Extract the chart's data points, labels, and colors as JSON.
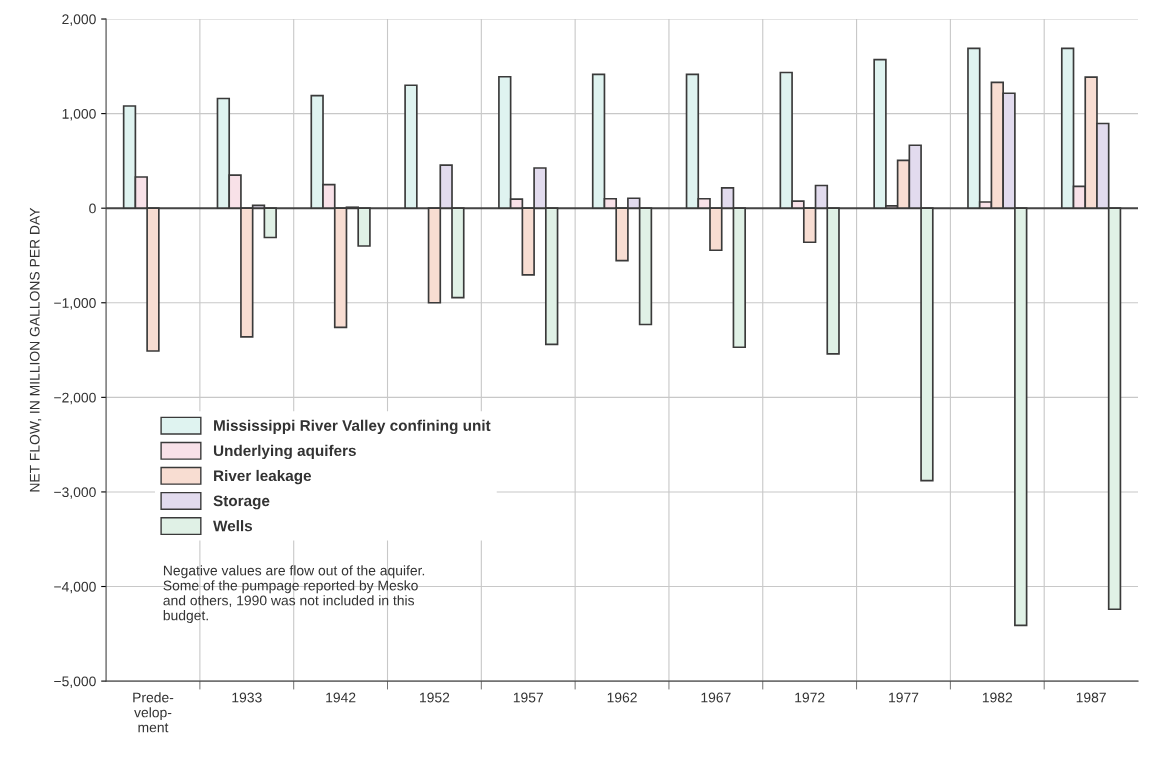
{
  "chart_data": {
    "type": "bar",
    "ylabel": "NET FLOW, IN MILLION GALLONS PER DAY",
    "categories": [
      "Prede-\nvelop-\nment",
      "1933",
      "1942",
      "1952",
      "1957",
      "1962",
      "1967",
      "1972",
      "1977",
      "1982",
      "1987"
    ],
    "series": [
      {
        "name": "Mississippi River Valley confining unit",
        "color": "#dff3f0",
        "values": [
          1080,
          1160,
          1190,
          1300,
          1390,
          1415,
          1415,
          1435,
          1570,
          1690,
          1690
        ]
      },
      {
        "name": "Underlying aquifers",
        "color": "#f8e1e8",
        "values": [
          330,
          350,
          250,
          null,
          95,
          100,
          100,
          75,
          25,
          65,
          230
        ]
      },
      {
        "name": "River leakage",
        "color": "#f8ddd2",
        "values": [
          -1510,
          -1360,
          -1260,
          -1000,
          -705,
          -555,
          -445,
          -360,
          505,
          1330,
          1385
        ]
      },
      {
        "name": "Storage",
        "color": "#e2dbee",
        "values": [
          null,
          30,
          10,
          455,
          425,
          105,
          215,
          240,
          665,
          1215,
          895
        ]
      },
      {
        "name": "Wells",
        "color": "#e0f1e6",
        "values": [
          null,
          -310,
          -400,
          -945,
          -1440,
          -1230,
          -1470,
          -1540,
          -2880,
          -4410,
          -4240
        ]
      }
    ],
    "ylim": [
      -5000,
      2000
    ],
    "yticks": [
      {
        "value": -5000,
        "label": "−5,000"
      },
      {
        "value": -4000,
        "label": "−4,000"
      },
      {
        "value": -3000,
        "label": "−3,000"
      },
      {
        "value": -2000,
        "label": "−2,000"
      },
      {
        "value": -1000,
        "label": "−1,000"
      },
      0,
      {
        "value": 1000,
        "label": "1,000"
      },
      {
        "value": 2000,
        "label": "2,000"
      }
    ],
    "ref_lines": [
      {
        "axis": "y",
        "value": 0,
        "color": "#444444"
      }
    ],
    "grid": true,
    "legend": "left",
    "annotations": [
      "Negative values are flow out of the aquifer.\nSome of the pumpage reported by Mesko\nand others, 1990 was not included in this\nbudget."
    ]
  }
}
